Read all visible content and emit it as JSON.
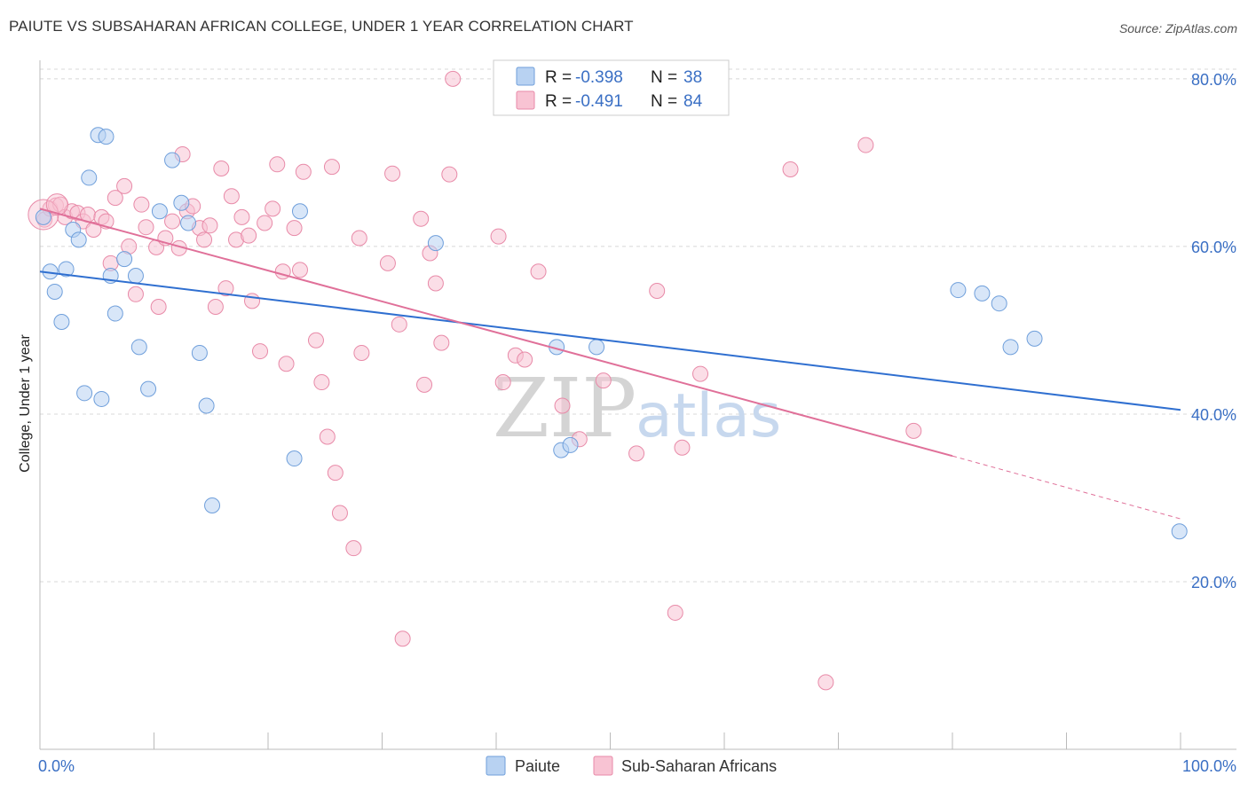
{
  "title": "PAIUTE VS SUBSAHARAN AFRICAN COLLEGE, UNDER 1 YEAR CORRELATION CHART",
  "source": "Source: ZipAtlas.com",
  "watermark": {
    "zip": "ZIP",
    "atlas": "atlas"
  },
  "colors": {
    "paiute_fill": "#b8d2f2",
    "paiute_stroke": "#6f9fdb",
    "paiute_line": "#2f6fd0",
    "ssa_fill": "#f8c3d3",
    "ssa_stroke": "#e88aa8",
    "ssa_line": "#e07099",
    "tick": "#3a6fc4",
    "grid": "#d8d8d8"
  },
  "stats_legend": {
    "r_label": "R =",
    "n_label": "N =",
    "rows": [
      {
        "series": "Paiute",
        "r": "-0.398",
        "n": "38"
      },
      {
        "series": "Sub-Saharan Africans",
        "r": "-0.491",
        "n": "84"
      }
    ]
  },
  "chart_data": {
    "type": "scatter",
    "title": "PAIUTE VS SUBSAHARAN AFRICAN COLLEGE, UNDER 1 YEAR CORRELATION CHART",
    "xlabel": "",
    "ylabel": "College, Under 1 year",
    "xlim": [
      0,
      100
    ],
    "ylim": [
      0,
      82
    ],
    "x_tick_labels": [
      "0.0%",
      "100.0%"
    ],
    "y_ticks": [
      20,
      40,
      60,
      80
    ],
    "y_tick_labels": [
      "20.0%",
      "40.0%",
      "60.0%",
      "80.0%"
    ],
    "legend": [
      "Paiute",
      "Sub-Saharan Africans"
    ],
    "series": [
      {
        "name": "Paiute",
        "trend": {
          "x0": 0,
          "y0": 57.0,
          "x1": 100,
          "y1": 40.5
        },
        "points": [
          [
            0.3,
            63.5
          ],
          [
            0.9,
            57.0
          ],
          [
            1.3,
            54.6
          ],
          [
            1.9,
            51.0
          ],
          [
            2.3,
            57.3
          ],
          [
            2.9,
            62.0
          ],
          [
            3.4,
            60.8
          ],
          [
            3.9,
            42.5
          ],
          [
            4.3,
            68.2
          ],
          [
            5.1,
            73.3
          ],
          [
            5.4,
            41.8
          ],
          [
            5.8,
            73.1
          ],
          [
            6.2,
            56.5
          ],
          [
            6.6,
            52.0
          ],
          [
            7.4,
            58.5
          ],
          [
            8.4,
            56.5
          ],
          [
            8.7,
            48.0
          ],
          [
            9.5,
            43.0
          ],
          [
            10.5,
            64.2
          ],
          [
            11.6,
            70.3
          ],
          [
            12.4,
            65.2
          ],
          [
            13.0,
            62.8
          ],
          [
            14.0,
            47.3
          ],
          [
            14.6,
            41.0
          ],
          [
            15.1,
            29.1
          ],
          [
            22.3,
            34.7
          ],
          [
            22.8,
            64.2
          ],
          [
            34.7,
            60.4
          ],
          [
            45.3,
            48.0
          ],
          [
            45.7,
            35.7
          ],
          [
            46.5,
            36.3
          ],
          [
            48.8,
            48.0
          ],
          [
            80.5,
            54.8
          ],
          [
            82.6,
            54.4
          ],
          [
            84.1,
            53.2
          ],
          [
            85.1,
            48.0
          ],
          [
            87.2,
            49.0
          ],
          [
            99.9,
            26.0
          ]
        ]
      },
      {
        "name": "Sub-Saharan Africans",
        "trend": {
          "x0": 0,
          "y0": 64.5,
          "x1": 80,
          "y1": 35.0,
          "dash_to_x": 100,
          "dash_to_y": 27.5
        },
        "points": [
          [
            0.4,
            63.2
          ],
          [
            0.9,
            64.5
          ],
          [
            1.4,
            64.9
          ],
          [
            1.8,
            65.0
          ],
          [
            2.2,
            63.5
          ],
          [
            2.8,
            64.2
          ],
          [
            3.3,
            64.0
          ],
          [
            3.8,
            63.0
          ],
          [
            4.2,
            63.8
          ],
          [
            4.7,
            62.0
          ],
          [
            5.4,
            63.5
          ],
          [
            5.8,
            63.0
          ],
          [
            6.2,
            58.0
          ],
          [
            6.6,
            65.8
          ],
          [
            7.4,
            67.2
          ],
          [
            7.8,
            60.0
          ],
          [
            8.4,
            54.3
          ],
          [
            8.9,
            65.0
          ],
          [
            9.3,
            62.3
          ],
          [
            10.2,
            59.9
          ],
          [
            10.4,
            52.8
          ],
          [
            11.0,
            61.0
          ],
          [
            11.6,
            63.0
          ],
          [
            12.2,
            59.8
          ],
          [
            12.5,
            71.0
          ],
          [
            12.9,
            64.2
          ],
          [
            13.4,
            64.8
          ],
          [
            14.0,
            62.2
          ],
          [
            14.4,
            60.8
          ],
          [
            14.9,
            62.5
          ],
          [
            15.4,
            52.8
          ],
          [
            15.9,
            69.3
          ],
          [
            16.3,
            55.0
          ],
          [
            16.8,
            66.0
          ],
          [
            17.2,
            60.8
          ],
          [
            17.7,
            63.5
          ],
          [
            18.3,
            61.3
          ],
          [
            18.6,
            53.5
          ],
          [
            19.3,
            47.5
          ],
          [
            19.7,
            62.8
          ],
          [
            20.4,
            64.5
          ],
          [
            20.8,
            69.8
          ],
          [
            21.3,
            57.0
          ],
          [
            21.6,
            46.0
          ],
          [
            22.3,
            62.2
          ],
          [
            22.8,
            57.2
          ],
          [
            23.1,
            68.9
          ],
          [
            24.2,
            48.8
          ],
          [
            24.7,
            43.8
          ],
          [
            25.2,
            37.3
          ],
          [
            25.6,
            69.5
          ],
          [
            25.9,
            33.0
          ],
          [
            26.3,
            28.2
          ],
          [
            27.5,
            24.0
          ],
          [
            28.0,
            61.0
          ],
          [
            28.2,
            47.3
          ],
          [
            30.5,
            58.0
          ],
          [
            30.9,
            68.7
          ],
          [
            31.5,
            50.7
          ],
          [
            31.8,
            13.2
          ],
          [
            33.4,
            63.3
          ],
          [
            33.7,
            43.5
          ],
          [
            34.2,
            59.2
          ],
          [
            34.7,
            55.6
          ],
          [
            35.2,
            48.5
          ],
          [
            35.9,
            68.6
          ],
          [
            36.2,
            80.0
          ],
          [
            40.2,
            61.2
          ],
          [
            40.6,
            43.8
          ],
          [
            41.7,
            47.0
          ],
          [
            42.5,
            46.5
          ],
          [
            43.7,
            57.0
          ],
          [
            45.8,
            41.0
          ],
          [
            47.3,
            37.0
          ],
          [
            49.4,
            44.0
          ],
          [
            52.3,
            35.3
          ],
          [
            54.1,
            54.7
          ],
          [
            55.7,
            16.3
          ],
          [
            56.3,
            36.0
          ],
          [
            57.9,
            44.8
          ],
          [
            65.8,
            69.2
          ],
          [
            68.9,
            8.0
          ],
          [
            72.4,
            72.1
          ],
          [
            76.6,
            38.0
          ]
        ]
      }
    ]
  }
}
